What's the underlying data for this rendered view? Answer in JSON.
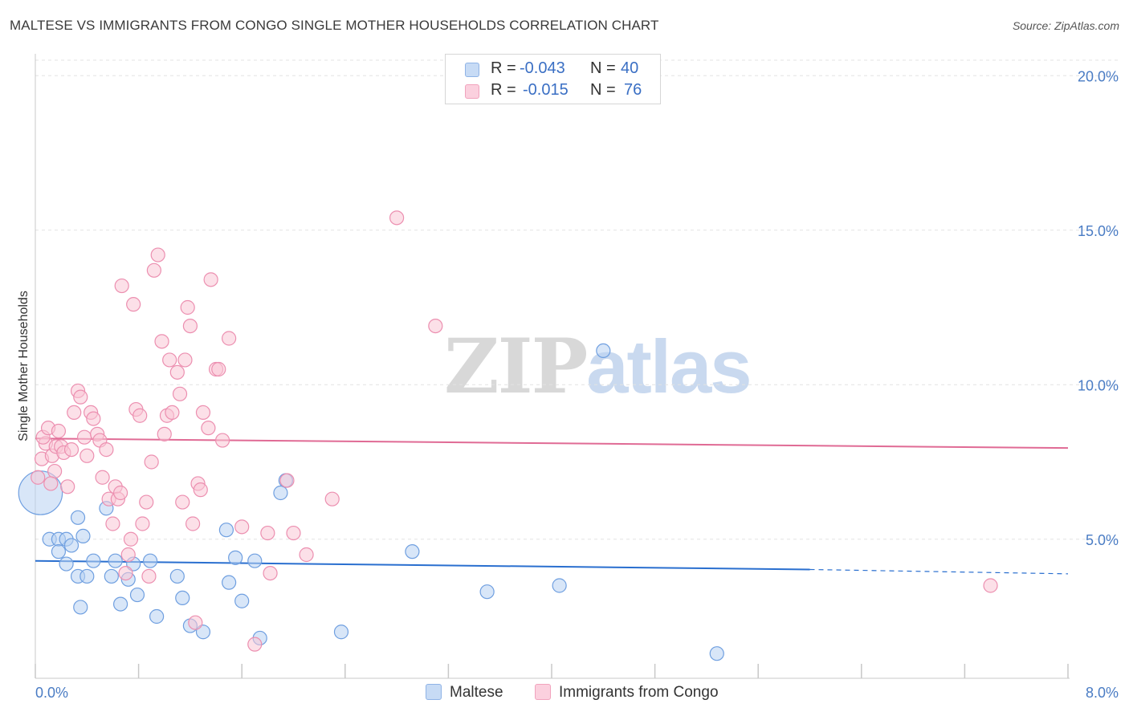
{
  "title": "MALTESE VS IMMIGRANTS FROM CONGO SINGLE MOTHER HOUSEHOLDS CORRELATION CHART",
  "source": "Source: ZipAtlas.com",
  "watermark": {
    "part1": "ZIP",
    "part2": "atlas"
  },
  "legend": {
    "rows": [
      {
        "r_label": "R = ",
        "r_value": "-0.043",
        "n_label": "N = ",
        "n_value": "40",
        "color": "#9cbfec"
      },
      {
        "r_label": "R = ",
        "r_value": "-0.015",
        "n_label": "N = ",
        "n_value": "76",
        "color": "#f7b6cb"
      }
    ]
  },
  "bottom_legend": [
    {
      "label": "Maltese",
      "color": "#9cbfec"
    },
    {
      "label": "Immigrants from Congo",
      "color": "#f7b6cb"
    }
  ],
  "chart_data": {
    "type": "scatter",
    "ylabel": "Single Mother Households",
    "xlabel": "",
    "xlim": [
      0,
      8
    ],
    "ylim": [
      0.5,
      20.5
    ],
    "x_tick_labels": [
      "0.0%",
      "8.0%"
    ],
    "y_ticks": [
      5,
      10,
      15,
      20
    ],
    "y_tick_labels": [
      "5.0%",
      "10.0%",
      "15.0%",
      "20.0%"
    ],
    "grid": true,
    "series": [
      {
        "name": "Maltese",
        "color": "#6f9fe0",
        "fill": "#b8d1f3",
        "trend": {
          "x": [
            0,
            6.0
          ],
          "y": [
            4.3,
            4.02
          ],
          "dashed_to": [
            8.0,
            3.88
          ],
          "color": "#2a6fcf"
        },
        "points": [
          [
            0.04,
            6.5,
            3.2
          ],
          [
            0.11,
            5.0,
            1
          ],
          [
            0.18,
            5.0,
            1
          ],
          [
            0.24,
            5.0,
            1
          ],
          [
            0.28,
            4.8,
            1
          ],
          [
            0.18,
            4.6,
            1
          ],
          [
            0.33,
            5.7,
            1
          ],
          [
            0.37,
            5.1,
            1
          ],
          [
            0.33,
            3.8,
            1
          ],
          [
            0.24,
            4.2,
            1
          ],
          [
            0.4,
            3.8,
            1
          ],
          [
            0.45,
            4.3,
            1
          ],
          [
            0.35,
            2.8,
            1
          ],
          [
            0.59,
            3.8,
            1
          ],
          [
            0.62,
            4.3,
            1
          ],
          [
            0.55,
            6.0,
            1
          ],
          [
            0.66,
            2.9,
            1
          ],
          [
            0.72,
            3.7,
            1
          ],
          [
            0.79,
            3.2,
            1
          ],
          [
            0.76,
            4.2,
            1
          ],
          [
            0.89,
            4.3,
            1
          ],
          [
            0.94,
            2.5,
            1
          ],
          [
            1.1,
            3.8,
            1
          ],
          [
            1.14,
            3.1,
            1
          ],
          [
            1.2,
            2.2,
            1
          ],
          [
            1.3,
            2.0,
            1
          ],
          [
            1.5,
            3.6,
            1
          ],
          [
            1.55,
            4.4,
            1
          ],
          [
            1.48,
            5.3,
            1
          ],
          [
            1.6,
            3.0,
            1
          ],
          [
            1.7,
            4.3,
            1
          ],
          [
            1.74,
            1.8,
            1
          ],
          [
            1.9,
            6.5,
            1
          ],
          [
            1.94,
            6.9,
            1
          ],
          [
            2.37,
            2.0,
            1
          ],
          [
            2.92,
            4.6,
            1
          ],
          [
            3.5,
            3.3,
            1
          ],
          [
            4.06,
            3.5,
            1
          ],
          [
            4.4,
            11.1,
            1
          ],
          [
            5.28,
            1.3,
            1
          ]
        ]
      },
      {
        "name": "Immigrants from Congo",
        "color": "#ec8fb0",
        "fill": "#f9c6d6",
        "trend": {
          "x": [
            0,
            8.0
          ],
          "y": [
            8.26,
            7.95
          ],
          "color": "#e06b95"
        },
        "points": [
          [
            0.02,
            7.0,
            1
          ],
          [
            0.05,
            7.6,
            1
          ],
          [
            0.08,
            8.1,
            1
          ],
          [
            0.06,
            8.3,
            1
          ],
          [
            0.1,
            8.6,
            1
          ],
          [
            0.13,
            7.7,
            1
          ],
          [
            0.15,
            7.2,
            1
          ],
          [
            0.12,
            6.8,
            1
          ],
          [
            0.16,
            8.0,
            1
          ],
          [
            0.18,
            8.5,
            1
          ],
          [
            0.2,
            8.0,
            1
          ],
          [
            0.22,
            7.8,
            1
          ],
          [
            0.25,
            6.7,
            1
          ],
          [
            0.28,
            7.9,
            1
          ],
          [
            0.3,
            9.1,
            1
          ],
          [
            0.33,
            9.8,
            1
          ],
          [
            0.35,
            9.6,
            1
          ],
          [
            0.38,
            8.3,
            1
          ],
          [
            0.4,
            7.7,
            1
          ],
          [
            0.43,
            9.1,
            1
          ],
          [
            0.45,
            8.9,
            1
          ],
          [
            0.48,
            8.4,
            1
          ],
          [
            0.5,
            8.2,
            1
          ],
          [
            0.52,
            7.0,
            1
          ],
          [
            0.55,
            7.9,
            1
          ],
          [
            0.57,
            6.3,
            1
          ],
          [
            0.6,
            5.5,
            1
          ],
          [
            0.62,
            6.7,
            1
          ],
          [
            0.64,
            6.3,
            1
          ],
          [
            0.66,
            6.5,
            1
          ],
          [
            0.67,
            13.2,
            1
          ],
          [
            0.7,
            3.9,
            1
          ],
          [
            0.72,
            4.5,
            1
          ],
          [
            0.74,
            5.0,
            1
          ],
          [
            0.76,
            12.6,
            1
          ],
          [
            0.78,
            9.2,
            1
          ],
          [
            0.81,
            9.0,
            1
          ],
          [
            0.83,
            5.5,
            1
          ],
          [
            0.86,
            6.2,
            1
          ],
          [
            0.88,
            3.8,
            1
          ],
          [
            0.9,
            7.5,
            1
          ],
          [
            0.92,
            13.7,
            1
          ],
          [
            0.95,
            14.2,
            1
          ],
          [
            0.98,
            11.4,
            1
          ],
          [
            1.0,
            8.4,
            1
          ],
          [
            1.02,
            9.0,
            1
          ],
          [
            1.04,
            10.8,
            1
          ],
          [
            1.06,
            9.1,
            1
          ],
          [
            1.1,
            10.4,
            1
          ],
          [
            1.12,
            9.7,
            1
          ],
          [
            1.14,
            6.2,
            1
          ],
          [
            1.16,
            10.8,
            1
          ],
          [
            1.18,
            12.5,
            1
          ],
          [
            1.2,
            11.9,
            1
          ],
          [
            1.22,
            5.5,
            1
          ],
          [
            1.24,
            2.3,
            1
          ],
          [
            1.26,
            6.8,
            1
          ],
          [
            1.28,
            6.6,
            1
          ],
          [
            1.3,
            9.1,
            1
          ],
          [
            1.34,
            8.6,
            1
          ],
          [
            1.36,
            13.4,
            1
          ],
          [
            1.4,
            10.5,
            1
          ],
          [
            1.42,
            10.5,
            1
          ],
          [
            1.45,
            8.2,
            1
          ],
          [
            1.5,
            11.5,
            1
          ],
          [
            1.6,
            5.4,
            1
          ],
          [
            1.7,
            1.6,
            1
          ],
          [
            1.8,
            5.2,
            1
          ],
          [
            1.82,
            3.9,
            1
          ],
          [
            1.95,
            6.9,
            1
          ],
          [
            2.0,
            5.2,
            1
          ],
          [
            2.1,
            4.5,
            1
          ],
          [
            2.8,
            15.4,
            1
          ],
          [
            3.1,
            11.9,
            1
          ],
          [
            2.3,
            6.3,
            1
          ],
          [
            7.4,
            3.5,
            1
          ]
        ]
      }
    ]
  }
}
